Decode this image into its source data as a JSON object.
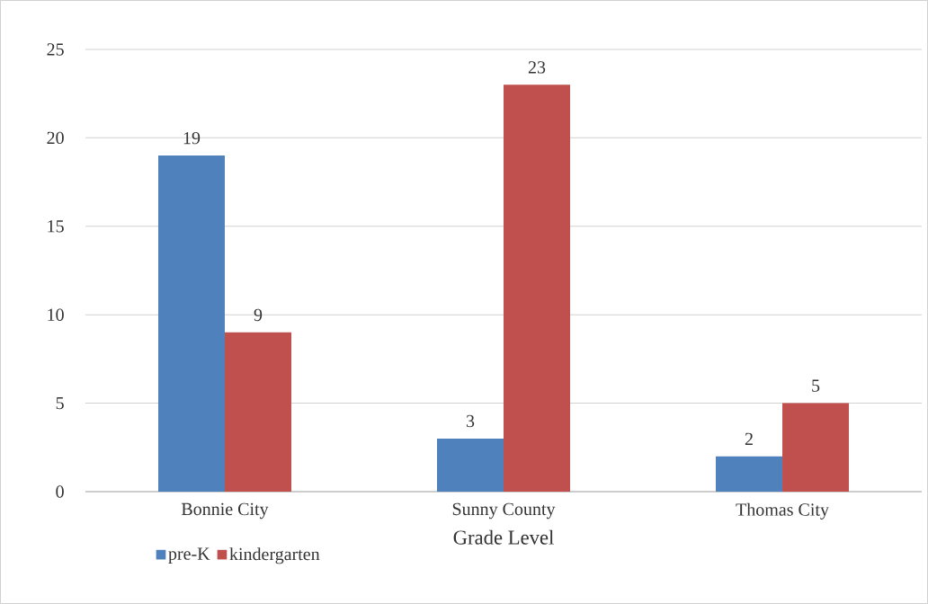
{
  "chart_data": {
    "type": "bar",
    "xlabel": "Grade Level",
    "categories": [
      "Bonnie City",
      "Sunny County",
      "Thomas City"
    ],
    "series": [
      {
        "name": "pre-K",
        "color": "#4f81bd",
        "values": [
          19,
          3,
          2
        ]
      },
      {
        "name": "kindergarten",
        "color": "#c0504d",
        "values": [
          9,
          23,
          5
        ]
      }
    ],
    "ylim": [
      0,
      25
    ],
    "yticks": [
      0,
      5,
      10,
      15,
      20,
      25
    ],
    "grid": "y",
    "legend": "bottom",
    "data_labels": true
  }
}
